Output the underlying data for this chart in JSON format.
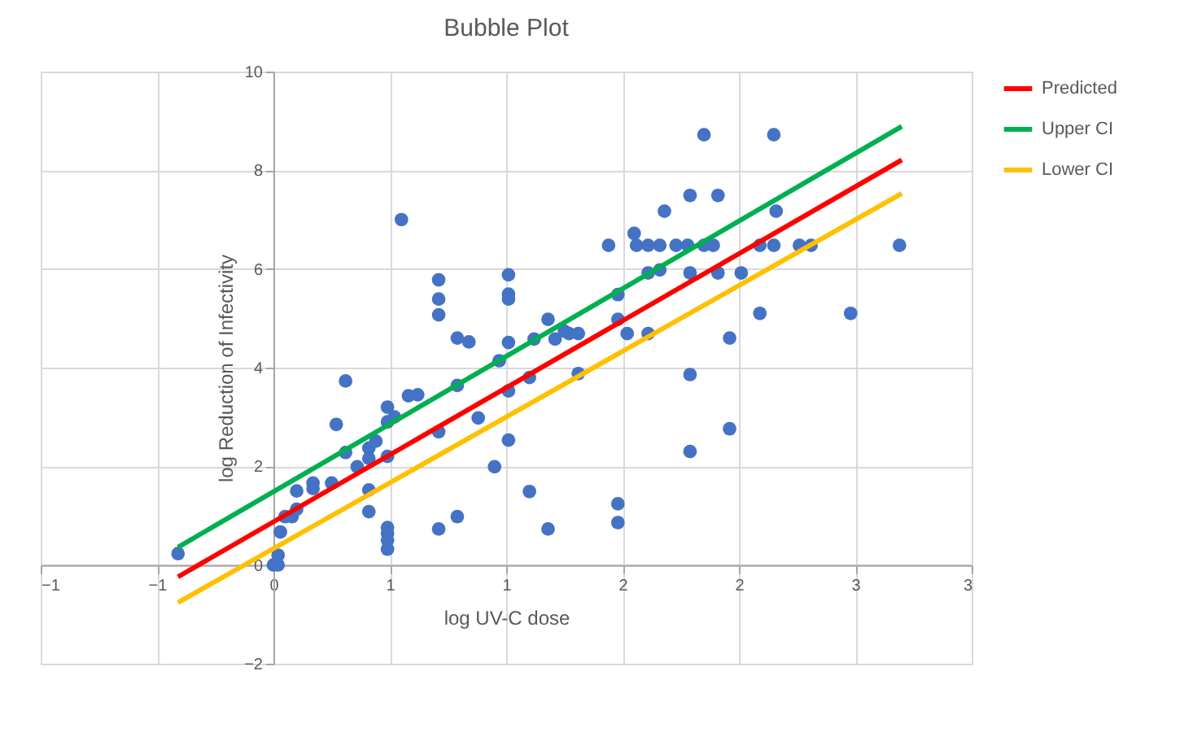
{
  "chart_data": {
    "type": "scatter",
    "title": "Bubble Plot",
    "xlabel": "log UV-C dose",
    "ylabel": "log Reduction of Infectivity",
    "xlim": [
      -1,
      3
    ],
    "ylim": [
      -2,
      10
    ],
    "xticks": [
      {
        "value": -1,
        "label": "−1"
      },
      {
        "value": -0.5,
        "label": "−1"
      },
      {
        "value": 0,
        "label": "0"
      },
      {
        "value": 0.5,
        "label": "1"
      },
      {
        "value": 1,
        "label": "1"
      },
      {
        "value": 1.5,
        "label": "2"
      },
      {
        "value": 2,
        "label": "2"
      },
      {
        "value": 2.5,
        "label": "3"
      },
      {
        "value": 3,
        "label": "3"
      }
    ],
    "yticks": [
      {
        "value": -2,
        "label": "−2"
      },
      0,
      2,
      4,
      6,
      8,
      10
    ],
    "grid": true,
    "legend": "right",
    "series": [
      {
        "color": "#4472c4",
        "marker": "circle",
        "x": [
          -0.41,
          0,
          0.02,
          0.02,
          0.03,
          0.05,
          0.08,
          0.1,
          0.1,
          0.17,
          0.17,
          0.25,
          0.27,
          0.31,
          0.31,
          0.36,
          0.41,
          0.41,
          0.44,
          0.41,
          0.41,
          0.49,
          0.49,
          0.49,
          0.52,
          0.49,
          0.49,
          0.49,
          0.49,
          0.55,
          0.58,
          0.62,
          0.71,
          0.71,
          0.71,
          0.71,
          0.71,
          0.79,
          0.84,
          0.79,
          0.79,
          0.88,
          0.95,
          0.97,
          1.01,
          1.01,
          1.01,
          1.01,
          1.01,
          1.01,
          1.1,
          1.1,
          1.12,
          1.18,
          1.18,
          1.21,
          1.25,
          1.27,
          1.31,
          1.31,
          1.44,
          1.48,
          1.48,
          1.52,
          1.48,
          1.48,
          1.55,
          1.56,
          1.61,
          1.66,
          1.61,
          1.66,
          1.61,
          1.68,
          1.73,
          1.78,
          1.79,
          1.79,
          1.79,
          1.79,
          1.85,
          1.85,
          1.89,
          1.91,
          1.91,
          1.96,
          1.96,
          2.01,
          2.09,
          2.09,
          2.15,
          2.16,
          2.15,
          2.26,
          2.31,
          2.48,
          2.69
        ],
        "values": [
          0.23,
          0,
          0,
          0.2,
          0.67,
          0.98,
          0.98,
          1.13,
          1.5,
          1.55,
          1.66,
          1.66,
          2.85,
          3.73,
          2.28,
          1.99,
          2.37,
          2.16,
          2.51,
          1.52,
          1.08,
          2.2,
          3.2,
          2.9,
          3.0,
          0.76,
          0.64,
          0.5,
          0.32,
          7.0,
          3.43,
          3.45,
          5.78,
          5.39,
          5.07,
          2.7,
          0.73,
          4.6,
          4.52,
          3.64,
          0.98,
          2.98,
          1.99,
          4.14,
          5.88,
          5.49,
          5.39,
          4.51,
          3.53,
          2.53,
          3.8,
          1.49,
          4.58,
          4.98,
          0.73,
          4.58,
          4.74,
          4.69,
          4.69,
          3.88,
          6.48,
          5.48,
          4.98,
          4.69,
          1.24,
          0.86,
          6.72,
          6.48,
          6.48,
          6.48,
          5.92,
          5.98,
          4.69,
          7.17,
          6.48,
          6.48,
          7.49,
          5.92,
          3.86,
          2.3,
          8.72,
          6.48,
          6.48,
          7.49,
          5.92,
          4.6,
          2.76,
          5.92,
          6.48,
          5.1,
          8.72,
          7.17,
          6.48,
          6.48,
          6.48,
          5.1,
          6.48
        ]
      },
      {
        "type": "line",
        "name": "Predicted",
        "color": "#ff0000",
        "x": [
          -0.41,
          2.7
        ],
        "values": [
          -0.24,
          8.21
        ]
      },
      {
        "type": "line",
        "name": "Upper CI",
        "color": "#00b050",
        "x": [
          -0.41,
          2.7
        ],
        "values": [
          0.36,
          8.89
        ]
      },
      {
        "type": "line",
        "name": "Lower CI",
        "color": "#ffc000",
        "x": [
          -0.41,
          2.7
        ],
        "values": [
          -0.76,
          7.53
        ]
      }
    ]
  }
}
